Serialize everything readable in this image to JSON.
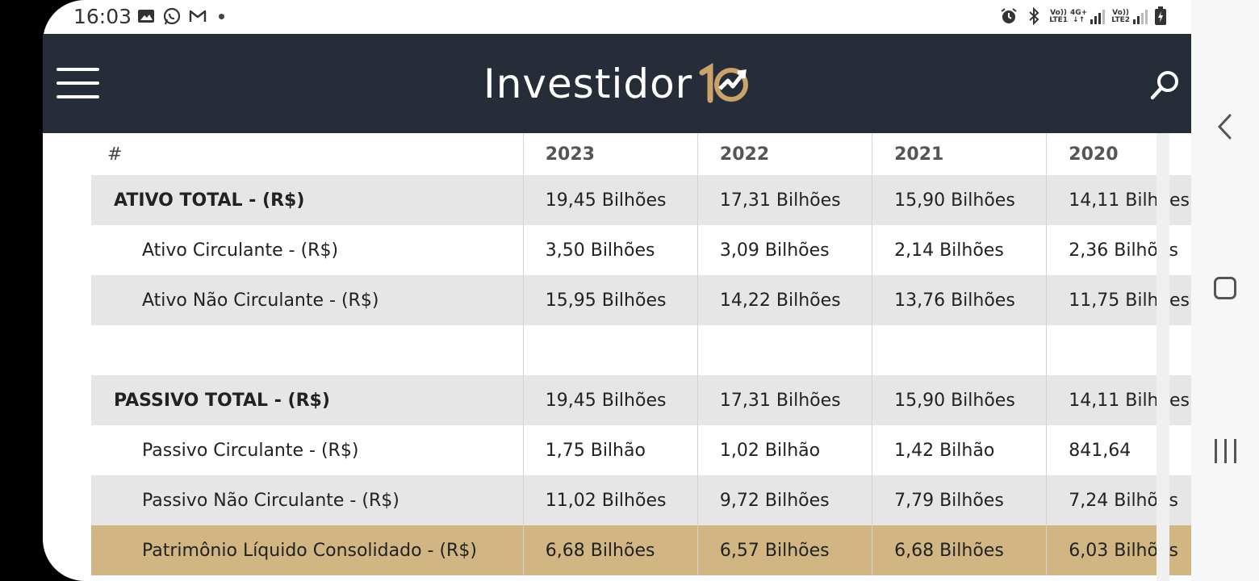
{
  "status_bar": {
    "time": "16:03",
    "left_icons": [
      "gallery-icon",
      "whatsapp-icon",
      "gmail-icon",
      "notification-dot"
    ],
    "right_icons": [
      "alarm-icon",
      "bluetooth-icon",
      "lte1-signal-icon",
      "lte2-signal-icon",
      "battery-charging-icon"
    ],
    "lte1_label": "LTE1",
    "lte2_label": "LTE2",
    "network_label": "4G+",
    "volte_label": "Vo))"
  },
  "header": {
    "logo_text": "Investidor",
    "background": "#272d38",
    "accent": "#c8a46a"
  },
  "table": {
    "header": {
      "hash": "#",
      "years": [
        "2023",
        "2022",
        "2021",
        "2020"
      ]
    },
    "rows": [
      {
        "label": "ATIVO TOTAL - (R$)",
        "values": [
          "19,45 Bilhões",
          "17,31 Bilhões",
          "15,90 Bilhões",
          "14,11 Bilhões"
        ]
      },
      {
        "label": "Ativo Circulante - (R$)",
        "values": [
          "3,50 Bilhões",
          "3,09 Bilhões",
          "2,14 Bilhões",
          "2,36 Bilhões"
        ]
      },
      {
        "label": "Ativo Não Circulante - (R$)",
        "values": [
          "15,95 Bilhões",
          "14,22 Bilhões",
          "13,76 Bilhões",
          "11,75 Bilhões"
        ]
      },
      {
        "label": "",
        "values": [
          "",
          "",
          "",
          ""
        ]
      },
      {
        "label": "PASSIVO TOTAL - (R$)",
        "values": [
          "19,45 Bilhões",
          "17,31 Bilhões",
          "15,90 Bilhões",
          "14,11 Bilhões"
        ]
      },
      {
        "label": "Passivo Circulante - (R$)",
        "values": [
          "1,75 Bilhão",
          "1,02 Bilhão",
          "1,42 Bilhão",
          "841,64"
        ]
      },
      {
        "label": "Passivo Não Circulante - (R$)",
        "values": [
          "11,02 Bilhões",
          "9,72 Bilhões",
          "7,79 Bilhões",
          "7,24 Bilhões"
        ]
      },
      {
        "label": "Patrimônio Líquido Consolidado - (R$)",
        "values": [
          "6,68 Bilhões",
          "6,57 Bilhões",
          "6,68 Bilhões",
          "6,03 Bilhões"
        ]
      }
    ],
    "highlight_color": "#d1b683",
    "stripe_color": "#e6e6e6"
  },
  "nav_buttons": [
    "back-icon",
    "home-icon",
    "recent-apps-icon"
  ]
}
